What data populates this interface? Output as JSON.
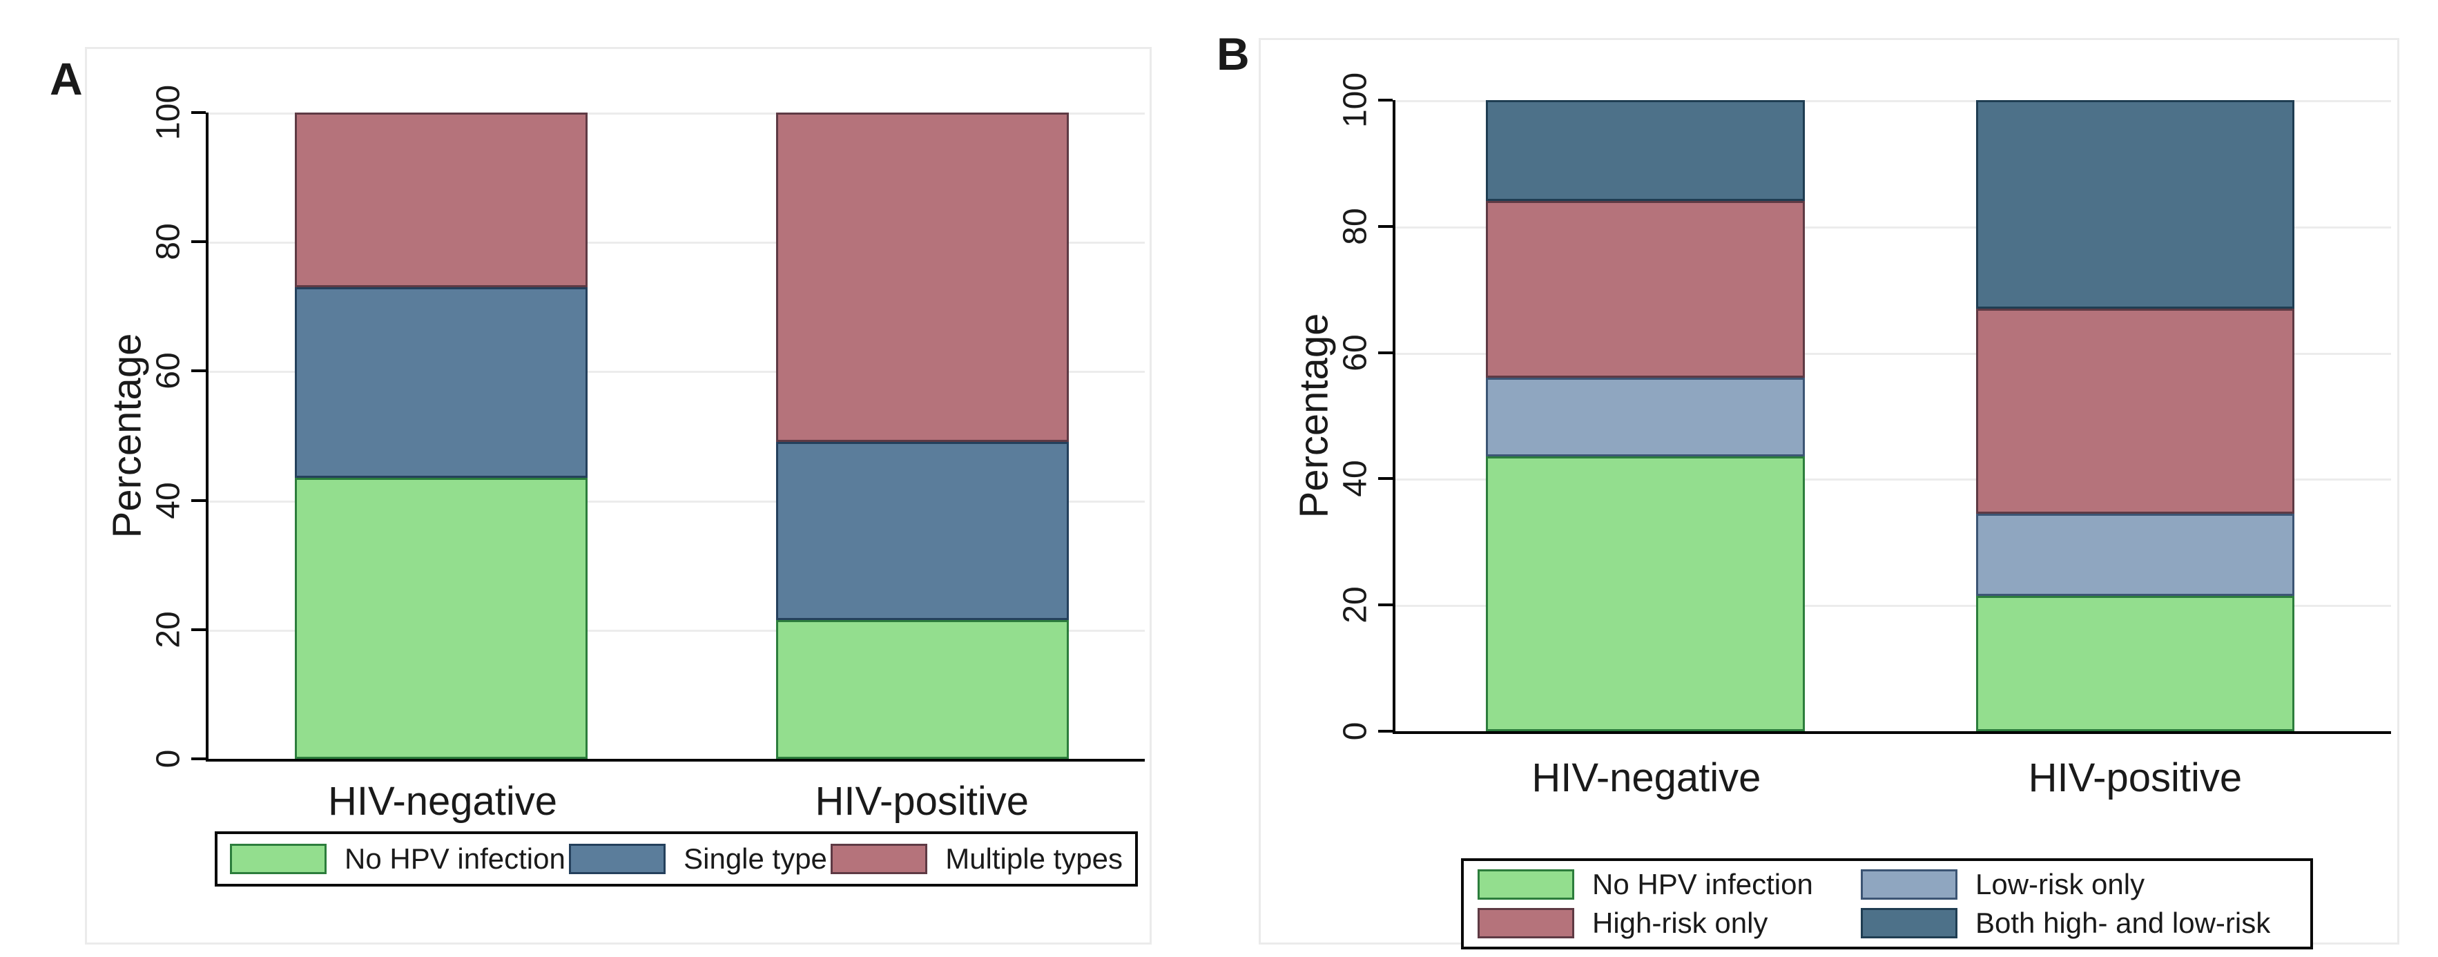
{
  "figure": {
    "background": "#ffffff",
    "panel_letters": [
      "A",
      "B"
    ]
  },
  "chart_data": [
    {
      "type": "bar",
      "stacked": true,
      "panel_label": "A",
      "ylabel": "Percentage",
      "ylim": [
        0,
        100
      ],
      "yticks": [
        0,
        20,
        40,
        60,
        80,
        100
      ],
      "grid": true,
      "legend_position": "bottom",
      "categories": [
        "HIV-negative",
        "HIV-positive"
      ],
      "series": [
        {
          "name": "No HPV infection",
          "color": "#93de8e",
          "border_color": "#2c7d3c",
          "values": [
            43.5,
            21.5
          ]
        },
        {
          "name": "Single type",
          "color": "#5b7d9b",
          "border_color": "#24405c",
          "values": [
            29.5,
            27.5
          ]
        },
        {
          "name": "Multiple types",
          "color": "#b5737b",
          "border_color": "#5e3a44",
          "values": [
            27.0,
            51.0
          ]
        }
      ]
    },
    {
      "type": "bar",
      "stacked": true,
      "panel_label": "B",
      "ylabel": "Percentage",
      "ylim": [
        0,
        100
      ],
      "yticks": [
        0,
        20,
        40,
        60,
        80,
        100
      ],
      "grid": true,
      "legend_position": "bottom",
      "categories": [
        "HIV-negative",
        "HIV-positive"
      ],
      "series": [
        {
          "name": "No HPV infection",
          "color": "#93de8e",
          "border_color": "#2c7d3c",
          "values": [
            43.5,
            21.5
          ]
        },
        {
          "name": "Low-risk only",
          "color": "#8fa6c0",
          "border_color": "#3c5574",
          "values": [
            12.5,
            13.0
          ]
        },
        {
          "name": "High-risk only",
          "color": "#b5737b",
          "border_color": "#5e3a44",
          "values": [
            28.0,
            32.5
          ]
        },
        {
          "name": "Both high- and low-risk",
          "color": "#4d7189",
          "border_color": "#1f3d52",
          "values": [
            16.0,
            33.0
          ]
        }
      ]
    }
  ]
}
